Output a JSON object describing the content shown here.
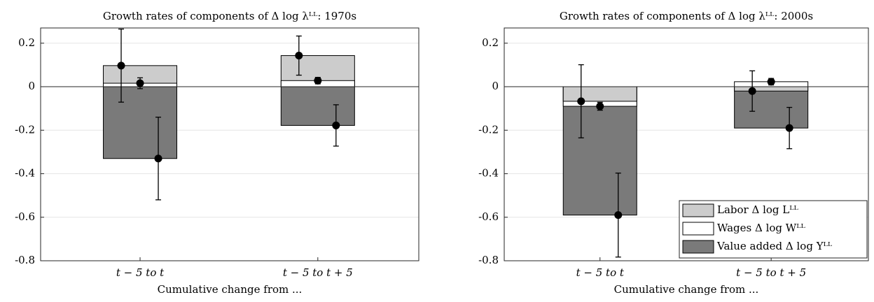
{
  "chart_data": [
    {
      "type": "bar",
      "title": "Growth rates of components of Δ log λᴸᴸ: 1970s",
      "x_label": "Cumulative change from ...",
      "categories": [
        "t − 5  to  t",
        "t − 5  to  t + 5"
      ],
      "ylim": [
        -0.8,
        0.27
      ],
      "yticks": [
        -0.8,
        -0.6,
        -0.4,
        -0.2,
        0,
        0.2
      ],
      "grid": true,
      "series": [
        {
          "name": "Labor Δ log Lᴸᴸ",
          "color": "#cccccc",
          "values": [
            0.097,
            0.143
          ],
          "errors": [
            0.168,
            0.09
          ]
        },
        {
          "name": "Wages Δ log Wᴸᴸ",
          "color": "#ffffff",
          "values": [
            0.016,
            0.028
          ],
          "errors": [
            0.025,
            0.015
          ]
        },
        {
          "name": "Value added Δ log Yᴸᴸ",
          "color": "#7a7a7a",
          "values": [
            -0.33,
            -0.178
          ],
          "errors": [
            0.19,
            0.095
          ]
        }
      ],
      "legend": false
    },
    {
      "type": "bar",
      "title": "Growth rates of components of Δ log λᴸᴸ: 2000s",
      "x_label": "Cumulative change from ...",
      "categories": [
        "t − 5  to  t",
        "t − 5  to  t + 5"
      ],
      "ylim": [
        -0.8,
        0.27
      ],
      "yticks": [
        -0.8,
        -0.6,
        -0.4,
        -0.2,
        0,
        0.2
      ],
      "grid": true,
      "series": [
        {
          "name": "Labor Δ log Lᴸᴸ",
          "color": "#cccccc",
          "values": [
            -0.067,
            -0.02
          ],
          "errors": [
            0.168,
            0.093
          ]
        },
        {
          "name": "Wages Δ log Wᴸᴸ",
          "color": "#ffffff",
          "values": [
            -0.09,
            0.023
          ],
          "errors": [
            0.018,
            0.015
          ]
        },
        {
          "name": "Value added Δ log Yᴸᴸ",
          "color": "#7a7a7a",
          "values": [
            -0.59,
            -0.19
          ],
          "errors": [
            0.193,
            0.095
          ]
        }
      ],
      "legend": "lower right"
    }
  ]
}
